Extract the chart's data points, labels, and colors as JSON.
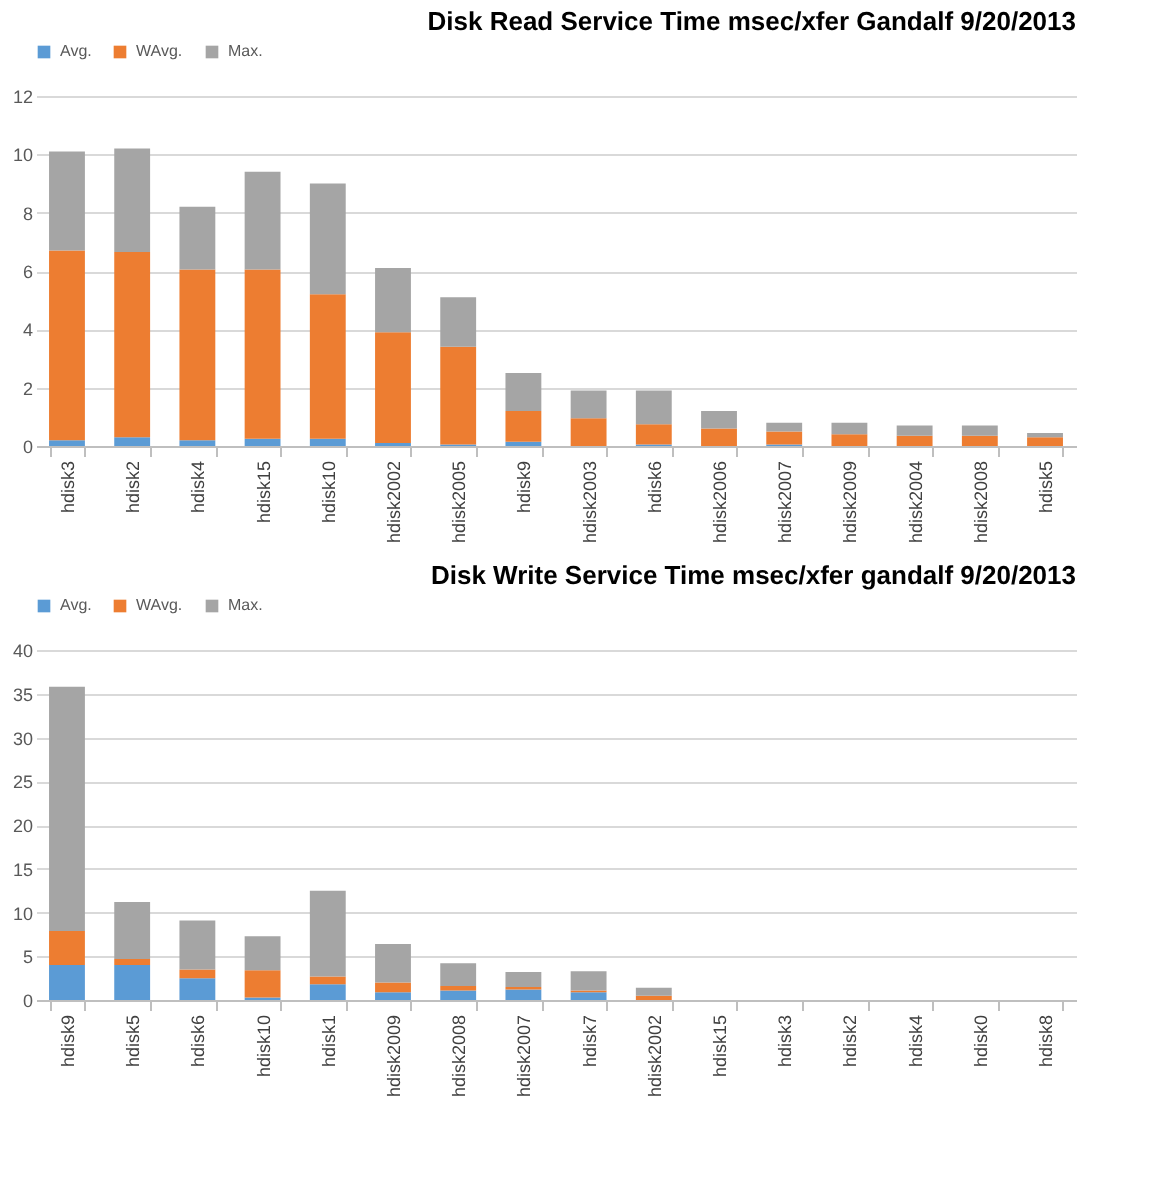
{
  "chart_data": [
    {
      "type": "bar",
      "title": "Disk Read Service Time msec/xfer Gandalf  9/20/2013",
      "stacked": true,
      "legend": "top",
      "grid": "y",
      "categories": [
        "hdisk3",
        "hdisk2",
        "hdisk4",
        "hdisk15",
        "hdisk10",
        "hdisk2002",
        "hdisk2005",
        "hdisk9",
        "hdisk2003",
        "hdisk6",
        "hdisk2006",
        "hdisk2007",
        "hdisk2009",
        "hdisk2004",
        "hdisk2008",
        "hdisk5"
      ],
      "ylim": [
        0,
        12
      ],
      "yticks": [
        0,
        2,
        4,
        6,
        8,
        10,
        12
      ],
      "series": [
        {
          "name": "Avg.",
          "color": "#5b9bd5",
          "values": [
            0.2,
            0.3,
            0.2,
            0.25,
            0.25,
            0.1,
            0.05,
            0.15,
            0,
            0.05,
            0,
            0.05,
            0,
            0,
            0,
            0
          ]
        },
        {
          "name": "WAvg.",
          "color": "#ed7d31",
          "values": [
            6.5,
            6.35,
            5.85,
            5.8,
            4.95,
            3.8,
            3.35,
            1.05,
            0.95,
            0.7,
            0.6,
            0.45,
            0.4,
            0.35,
            0.35,
            0.3
          ]
        },
        {
          "name": "Max.",
          "color": "#a5a5a5",
          "values": [
            3.4,
            3.55,
            2.15,
            3.35,
            3.8,
            2.2,
            1.7,
            1.3,
            0.95,
            1.15,
            0.6,
            0.3,
            0.4,
            0.35,
            0.35,
            0.15
          ]
        }
      ]
    },
    {
      "type": "bar",
      "title": "Disk Write Service Time msec/xfer gandalf  9/20/2013",
      "stacked": true,
      "legend": "top",
      "grid": "y",
      "categories": [
        "hdisk9",
        "hdisk5",
        "hdisk6",
        "hdisk10",
        "hdisk1",
        "hdisk2009",
        "hdisk2008",
        "hdisk2007",
        "hdisk7",
        "hdisk2002",
        "hdisk15",
        "hdisk3",
        "hdisk2",
        "hdisk4",
        "hdisk0",
        "hdisk8"
      ],
      "ylim": [
        0,
        40
      ],
      "yticks": [
        0,
        5,
        10,
        15,
        20,
        25,
        30,
        35,
        40
      ],
      "series": [
        {
          "name": "Avg.",
          "color": "#5b9bd5",
          "values": [
            4.0,
            4.0,
            2.5,
            0.3,
            1.8,
            0.9,
            1.1,
            1.2,
            0.9,
            0,
            0,
            0,
            0,
            0,
            0,
            0
          ]
        },
        {
          "name": "WAvg.",
          "color": "#ed7d31",
          "values": [
            3.9,
            0.7,
            1.0,
            3.1,
            0.9,
            1.1,
            0.5,
            0.3,
            0.2,
            0.5,
            0,
            0,
            0,
            0,
            0,
            0
          ]
        },
        {
          "name": "Max.",
          "color": "#a5a5a5",
          "values": [
            27.9,
            6.5,
            5.6,
            3.9,
            9.8,
            4.4,
            2.6,
            1.7,
            2.2,
            0.9,
            0,
            0,
            0,
            0,
            0,
            0
          ]
        }
      ]
    }
  ]
}
